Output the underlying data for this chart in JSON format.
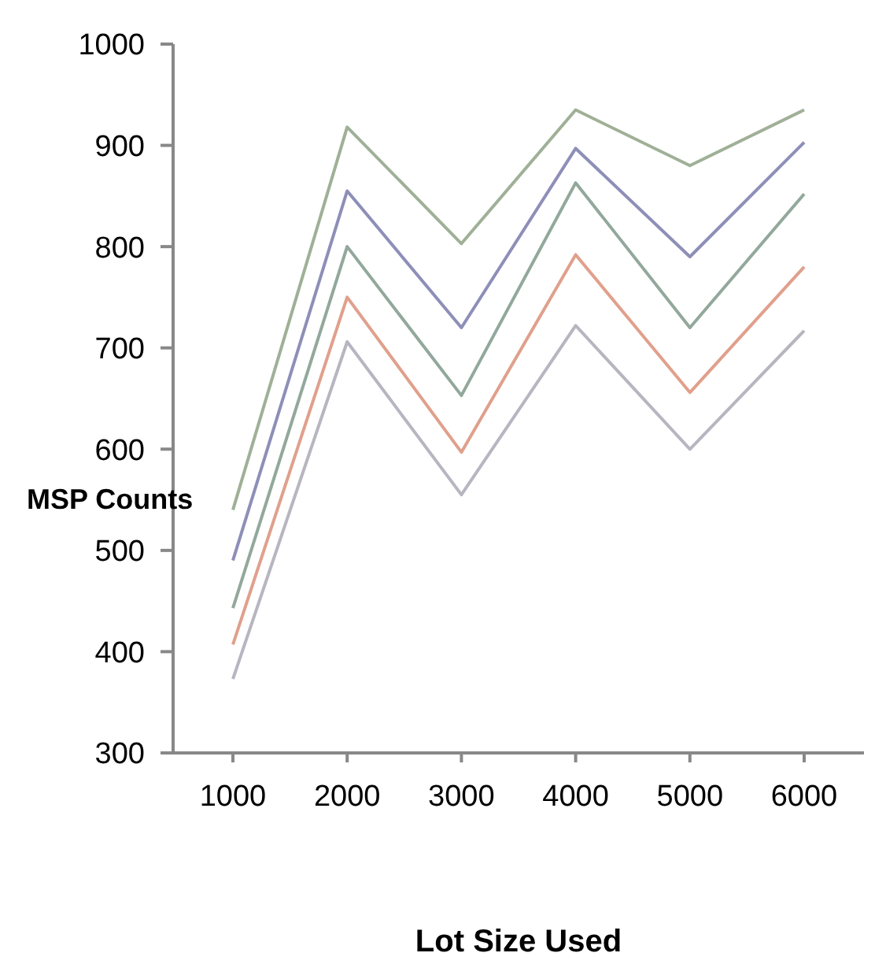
{
  "chart_data": {
    "type": "line",
    "xlabel": "Lot Size Used",
    "ylabel": "MSP Counts",
    "categories": [
      "1000",
      "2000",
      "3000",
      "4000",
      "5000",
      "6000"
    ],
    "series": [
      {
        "color": "#9fb097",
        "values": [
          540,
          918,
          803,
          935,
          880,
          935
        ]
      },
      {
        "color": "#8e8fb8",
        "values": [
          490,
          855,
          720,
          897,
          790,
          903
        ]
      },
      {
        "color": "#92a89c",
        "values": [
          443,
          800,
          653,
          863,
          720,
          852
        ]
      },
      {
        "color": "#e0a08c",
        "values": [
          407,
          750,
          597,
          792,
          656,
          780
        ]
      },
      {
        "color": "#b7b6c0",
        "values": [
          373,
          706,
          555,
          722,
          600,
          717
        ]
      }
    ],
    "ylim": [
      300,
      1000
    ],
    "yticks": [
      300,
      400,
      500,
      600,
      700,
      800,
      900,
      1000
    ],
    "grid": false,
    "legend": false,
    "marker": "none",
    "line_style": "solid"
  }
}
